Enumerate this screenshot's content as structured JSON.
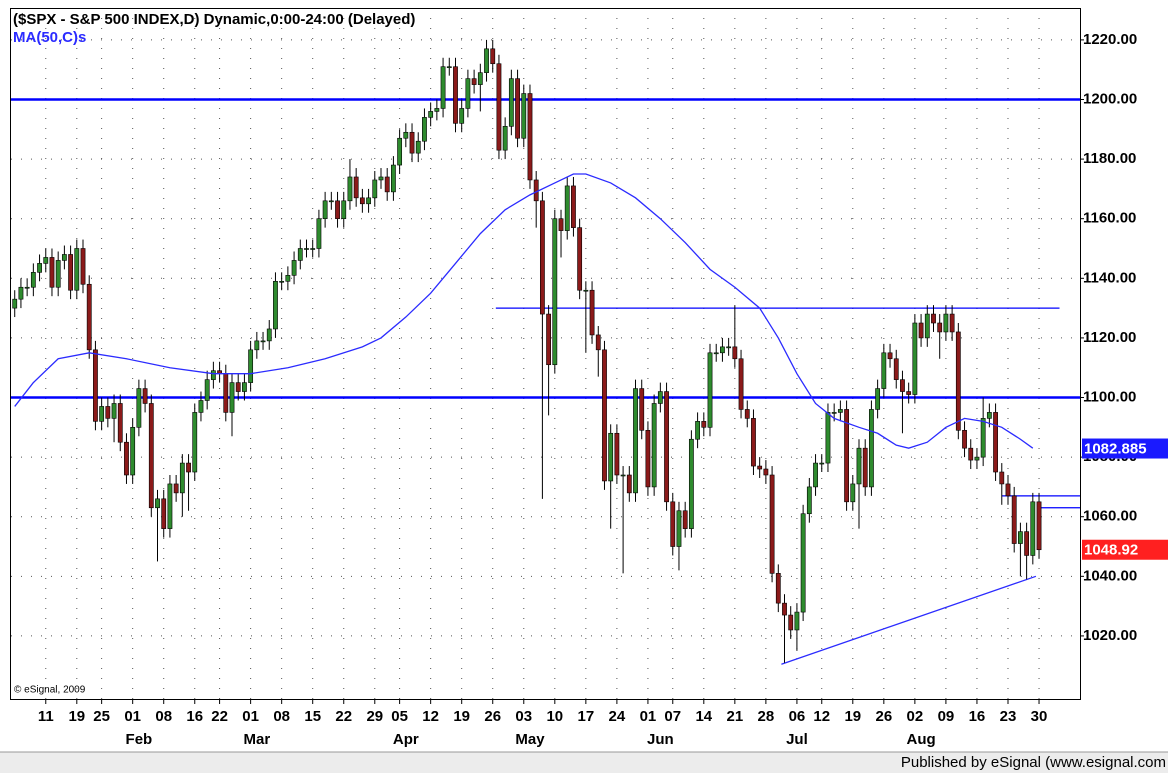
{
  "chart_data": {
    "type": "candlestick",
    "title": "($SPX - S&P 500 INDEX,D) Dynamic,0:00-24:00 (Delayed)",
    "copyright": "© eSignal, 2009",
    "footer": "Published by eSignal (www.esignal.com",
    "up_color": "#2e8b2e",
    "down_color": "#8b1a1a",
    "wick_color": "#000000",
    "grid": true,
    "xlim": [
      -0.6,
      171.6
    ],
    "ylim": [
      998.5,
      1230.7
    ],
    "yticks": [
      {
        "value": 1020,
        "label": "1020.00"
      },
      {
        "value": 1040,
        "label": "1040.00"
      },
      {
        "value": 1060,
        "label": "1060.00"
      },
      {
        "value": 1080,
        "label": "1080.00"
      },
      {
        "value": 1100,
        "label": "1100.00"
      },
      {
        "value": 1120,
        "label": "1120.00"
      },
      {
        "value": 1140,
        "label": "1140.00"
      },
      {
        "value": 1160,
        "label": "1160.00"
      },
      {
        "value": 1180,
        "label": "1180.00"
      },
      {
        "value": 1200,
        "label": "1200.00"
      },
      {
        "value": 1220,
        "label": "1220.00"
      }
    ],
    "xticks": [
      {
        "value": 5,
        "label": "11"
      },
      {
        "value": 10,
        "label": "19"
      },
      {
        "value": 14,
        "label": "25"
      },
      {
        "value": 19,
        "label": "01"
      },
      {
        "value": 24,
        "label": "08"
      },
      {
        "value": 29,
        "label": "16"
      },
      {
        "value": 33,
        "label": "22"
      },
      {
        "value": 38,
        "label": "01"
      },
      {
        "value": 43,
        "label": "08"
      },
      {
        "value": 48,
        "label": "15"
      },
      {
        "value": 53,
        "label": "22"
      },
      {
        "value": 58,
        "label": "29"
      },
      {
        "value": 62,
        "label": "05"
      },
      {
        "value": 67,
        "label": "12"
      },
      {
        "value": 72,
        "label": "19"
      },
      {
        "value": 77,
        "label": "26"
      },
      {
        "value": 82,
        "label": "03"
      },
      {
        "value": 87,
        "label": "10"
      },
      {
        "value": 92,
        "label": "17"
      },
      {
        "value": 97,
        "label": "24"
      },
      {
        "value": 102,
        "label": "01"
      },
      {
        "value": 106,
        "label": "07"
      },
      {
        "value": 111,
        "label": "14"
      },
      {
        "value": 116,
        "label": "21"
      },
      {
        "value": 121,
        "label": "28"
      },
      {
        "value": 126,
        "label": "06"
      },
      {
        "value": 130,
        "label": "12"
      },
      {
        "value": 135,
        "label": "19"
      },
      {
        "value": 140,
        "label": "26"
      },
      {
        "value": 145,
        "label": "02"
      },
      {
        "value": 150,
        "label": "09"
      },
      {
        "value": 155,
        "label": "16"
      },
      {
        "value": 160,
        "label": "23"
      },
      {
        "value": 165,
        "label": "30"
      }
    ],
    "month_ticks": [
      {
        "value": 20,
        "label": "Feb"
      },
      {
        "value": 39,
        "label": "Mar"
      },
      {
        "value": 63,
        "label": "Apr"
      },
      {
        "value": 83,
        "label": "May"
      },
      {
        "value": 104,
        "label": "Jun"
      },
      {
        "value": 126,
        "label": "Jul"
      },
      {
        "value": 146,
        "label": "Aug"
      }
    ],
    "open": [
      1130,
      1133,
      1137,
      1137,
      1142,
      1145,
      1147,
      1137,
      1146,
      1148,
      1136,
      1150,
      1138,
      1116,
      1092,
      1097,
      1093,
      1098,
      1085,
      1074,
      1090,
      1103,
      1098,
      1063,
      1066,
      1056,
      1071,
      1068,
      1078,
      1075,
      1095,
      1099,
      1106,
      1109,
      1108,
      1095,
      1105,
      1102,
      1105,
      1116,
      1119,
      1119,
      1123,
      1139,
      1139,
      1141,
      1146,
      1150,
      1150,
      1150,
      1160,
      1166,
      1166,
      1160,
      1166,
      1174,
      1167,
      1165,
      1167,
      1173,
      1174,
      1169,
      1178,
      1187,
      1189,
      1182,
      1186,
      1194,
      1196,
      1197,
      1211,
      1211,
      1192,
      1197,
      1207,
      1205,
      1209,
      1217,
      1212,
      1183,
      1191,
      1207,
      1187,
      1202,
      1173,
      1166,
      1128,
      1111,
      1160,
      1156,
      1171,
      1157,
      1136,
      1136,
      1121,
      1116,
      1072,
      1088,
      1074,
      1074,
      1068,
      1103,
      1089,
      1070,
      1098,
      1102,
      1065,
      1050,
      1062,
      1056,
      1086,
      1092,
      1090,
      1115,
      1115,
      1117,
      1117,
      1113,
      1096,
      1093,
      1077,
      1076,
      1074,
      1041,
      1031,
      1027,
      1022,
      1028,
      1061,
      1070,
      1078,
      1078,
      1095,
      1095,
      1096,
      1065,
      1071,
      1083,
      1070,
      1096,
      1103,
      1115,
      1113,
      1106,
      1102,
      1101,
      1125,
      1120,
      1128,
      1125,
      1122,
      1128,
      1122,
      1089,
      1083,
      1079,
      1080,
      1093,
      1095,
      1075,
      1071,
      1067,
      1051,
      1055,
      1047,
      1065
    ],
    "high": [
      1136,
      1140,
      1140,
      1145,
      1148,
      1150,
      1150,
      1149,
      1151,
      1151,
      1153,
      1153,
      1141,
      1119,
      1100,
      1100,
      1101,
      1101,
      1088,
      1093,
      1106,
      1106,
      1101,
      1069,
      1069,
      1074,
      1074,
      1081,
      1081,
      1098,
      1102,
      1109,
      1112,
      1112,
      1111,
      1108,
      1108,
      1108,
      1119,
      1122,
      1122,
      1126,
      1142,
      1142,
      1144,
      1149,
      1153,
      1153,
      1153,
      1163,
      1169,
      1169,
      1169,
      1169,
      1180,
      1177,
      1170,
      1170,
      1176,
      1177,
      1177,
      1181,
      1190,
      1192,
      1192,
      1189,
      1197,
      1199,
      1200,
      1214,
      1214,
      1214,
      1200,
      1210,
      1210,
      1212,
      1220,
      1220,
      1215,
      1194,
      1210,
      1210,
      1205,
      1205,
      1176,
      1169,
      1131,
      1163,
      1163,
      1174,
      1174,
      1160,
      1139,
      1139,
      1124,
      1119,
      1091,
      1091,
      1077,
      1077,
      1106,
      1106,
      1092,
      1101,
      1105,
      1105,
      1068,
      1065,
      1065,
      1089,
      1095,
      1095,
      1118,
      1118,
      1120,
      1120,
      1131,
      1116,
      1099,
      1096,
      1080,
      1079,
      1077,
      1044,
      1034,
      1030,
      1031,
      1064,
      1073,
      1081,
      1081,
      1098,
      1098,
      1099,
      1099,
      1074,
      1086,
      1086,
      1099,
      1106,
      1118,
      1118,
      1116,
      1109,
      1105,
      1128,
      1128,
      1131,
      1131,
      1128,
      1131,
      1131,
      1125,
      1092,
      1086,
      1083,
      1100,
      1098,
      1098,
      1078,
      1074,
      1070,
      1058,
      1058,
      1068,
      1068
    ],
    "low": [
      1127,
      1130,
      1134,
      1134,
      1139,
      1142,
      1134,
      1134,
      1143,
      1133,
      1133,
      1135,
      1113,
      1089,
      1089,
      1090,
      1085,
      1082,
      1071,
      1071,
      1087,
      1095,
      1060,
      1045,
      1053,
      1053,
      1065,
      1060,
      1062,
      1072,
      1092,
      1096,
      1103,
      1105,
      1092,
      1087,
      1099,
      1099,
      1102,
      1113,
      1116,
      1116,
      1120,
      1136,
      1136,
      1138,
      1143,
      1147,
      1147,
      1147,
      1157,
      1163,
      1157,
      1157,
      1163,
      1164,
      1162,
      1162,
      1164,
      1170,
      1166,
      1166,
      1175,
      1184,
      1179,
      1179,
      1183,
      1191,
      1193,
      1194,
      1208,
      1189,
      1189,
      1194,
      1202,
      1196,
      1206,
      1209,
      1180,
      1180,
      1188,
      1184,
      1184,
      1170,
      1157,
      1066,
      1094,
      1108,
      1147,
      1153,
      1154,
      1133,
      1115,
      1118,
      1107,
      1069,
      1056,
      1071,
      1041,
      1065,
      1065,
      1086,
      1067,
      1067,
      1095,
      1062,
      1047,
      1042,
      1053,
      1053,
      1083,
      1087,
      1087,
      1112,
      1112,
      1114,
      1110,
      1093,
      1090,
      1074,
      1073,
      1071,
      1038,
      1028,
      1011,
      1019,
      1015,
      1025,
      1058,
      1067,
      1075,
      1075,
      1092,
      1092,
      1062,
      1062,
      1056,
      1067,
      1067,
      1093,
      1100,
      1110,
      1103,
      1088,
      1098,
      1098,
      1117,
      1117,
      1122,
      1113,
      1119,
      1119,
      1086,
      1080,
      1076,
      1076,
      1077,
      1090,
      1072,
      1064,
      1064,
      1048,
      1040,
      1039,
      1044,
      1046
    ],
    "close": [
      1133,
      1137,
      1137,
      1142,
      1145,
      1147,
      1137,
      1146,
      1148,
      1136,
      1150,
      1138,
      1116,
      1092,
      1097,
      1093,
      1098,
      1085,
      1074,
      1090,
      1103,
      1098,
      1063,
      1066,
      1056,
      1071,
      1068,
      1078,
      1075,
      1095,
      1099,
      1106,
      1109,
      1108,
      1095,
      1105,
      1102,
      1105,
      1116,
      1119,
      1119,
      1123,
      1139,
      1139,
      1141,
      1146,
      1150,
      1150,
      1150,
      1160,
      1166,
      1166,
      1160,
      1166,
      1174,
      1167,
      1165,
      1167,
      1173,
      1174,
      1169,
      1178,
      1187,
      1189,
      1182,
      1186,
      1194,
      1196,
      1197,
      1211,
      1211,
      1192,
      1197,
      1207,
      1205,
      1209,
      1217,
      1212,
      1183,
      1191,
      1207,
      1187,
      1202,
      1173,
      1166,
      1128,
      1111,
      1160,
      1156,
      1171,
      1157,
      1136,
      1136,
      1121,
      1116,
      1072,
      1088,
      1074,
      1074,
      1068,
      1103,
      1089,
      1070,
      1098,
      1102,
      1065,
      1050,
      1062,
      1056,
      1086,
      1092,
      1090,
      1115,
      1115,
      1117,
      1117,
      1113,
      1096,
      1093,
      1077,
      1076,
      1074,
      1041,
      1031,
      1027,
      1022,
      1028,
      1061,
      1070,
      1078,
      1078,
      1095,
      1095,
      1096,
      1065,
      1071,
      1083,
      1070,
      1096,
      1103,
      1115,
      1113,
      1106,
      1102,
      1101,
      1125,
      1120,
      1128,
      1125,
      1122,
      1128,
      1122,
      1089,
      1083,
      1079,
      1080,
      1093,
      1095,
      1075,
      1071,
      1067,
      1051,
      1055,
      1047,
      1065,
      1048.92
    ],
    "ma": {
      "name": "MA(50,C)s",
      "color": "#2b2bff",
      "x": [
        0,
        3,
        7,
        12,
        18,
        25,
        32,
        38,
        44,
        50,
        56,
        59,
        63,
        67,
        71,
        75,
        79,
        83,
        87,
        90,
        92,
        96,
        100,
        104,
        108,
        112,
        116,
        120,
        123,
        126,
        129,
        132,
        136,
        139,
        142,
        144,
        147,
        150,
        153,
        156,
        159,
        162,
        164
      ],
      "values": [
        1097,
        1105,
        1113,
        1115,
        1113,
        1110,
        1108,
        1108,
        1110,
        1113,
        1117,
        1120,
        1127,
        1135,
        1145,
        1155,
        1163,
        1168,
        1172,
        1175,
        1175,
        1172,
        1167,
        1160,
        1152,
        1143,
        1137,
        1130,
        1120,
        1108,
        1098,
        1093,
        1090,
        1088,
        1084,
        1083,
        1085,
        1090,
        1093,
        1092,
        1090,
        1086,
        1083
      ]
    },
    "lines": [
      {
        "x": [
          -0.6,
          171.6
        ],
        "values": [
          1200,
          1200
        ],
        "color": "#0000ff",
        "style": "thick"
      },
      {
        "x": [
          -0.6,
          171.6
        ],
        "values": [
          1100,
          1100
        ],
        "color": "#0000ff",
        "style": "thick"
      },
      {
        "x": [
          77.5,
          168.3
        ],
        "values": [
          1130,
          1130
        ],
        "color": "#0000ff",
        "style": "thin"
      },
      {
        "x": [
          159,
          171.6
        ],
        "values": [
          1067,
          1067
        ],
        "color": "#0000ff",
        "style": "thin"
      },
      {
        "x": [
          165,
          171.6
        ],
        "values": [
          1063,
          1063
        ],
        "color": "#0000ff",
        "style": "thin"
      },
      {
        "x": [
          123.5,
          164.5
        ],
        "values": [
          1010.5,
          1040
        ],
        "color": "#2b2bff",
        "style": "thin"
      }
    ],
    "price_labels": [
      {
        "value": 1082.885,
        "label": "1082.885",
        "color": "#1a1aff"
      },
      {
        "value": 1048.92,
        "label": "1048.92",
        "color": "#ff2020"
      }
    ]
  }
}
